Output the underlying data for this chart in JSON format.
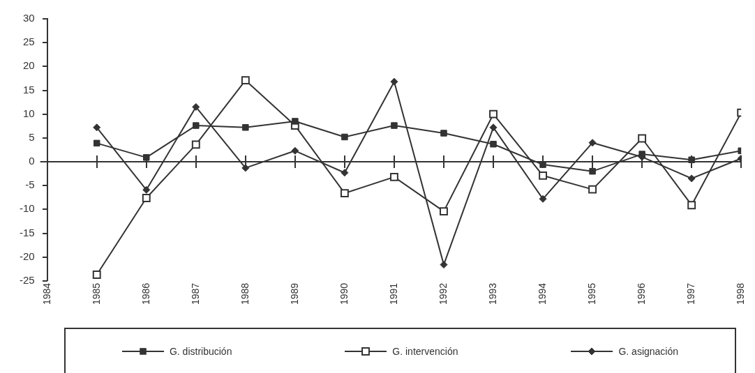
{
  "chart_data": {
    "type": "line",
    "x": [
      1985,
      1986,
      1987,
      1988,
      1989,
      1990,
      1991,
      1992,
      1993,
      1994,
      1995,
      1996,
      1997,
      1998
    ],
    "xlim": [
      1984,
      1998
    ],
    "xticks": [
      1984,
      1985,
      1986,
      1987,
      1988,
      1989,
      1990,
      1991,
      1992,
      1993,
      1994,
      1995,
      1996,
      1997,
      1998
    ],
    "ylim": [
      -25,
      30
    ],
    "yticks": [
      -25,
      -20,
      -15,
      -10,
      -5,
      0,
      5,
      10,
      15,
      20,
      25,
      30
    ],
    "series": [
      {
        "name": "G. distribución",
        "color": "#333333",
        "marker": "square",
        "values": [
          3.9,
          0.9,
          7.6,
          7.2,
          8.5,
          5.2,
          7.6,
          6.0,
          3.7,
          -0.6,
          -2.0,
          1.6,
          0.4,
          2.3
        ]
      },
      {
        "name": "G. intervención",
        "color": "#333333",
        "marker": "square",
        "values": [
          -23.7,
          -7.6,
          3.6,
          17.1,
          7.6,
          -6.6,
          -3.2,
          -10.4,
          10.0,
          -2.9,
          -5.8,
          4.9,
          -9.1,
          10.3
        ]
      },
      {
        "name": "G. asignación",
        "color": "#333333",
        "marker": "diamond",
        "values": [
          7.2,
          -5.9,
          11.5,
          -1.3,
          2.3,
          -2.3,
          16.8,
          -21.6,
          7.2,
          -7.8,
          4.0,
          1.0,
          -3.5,
          0.7
        ]
      }
    ],
    "legend": "bottom",
    "line_style": "solid"
  }
}
